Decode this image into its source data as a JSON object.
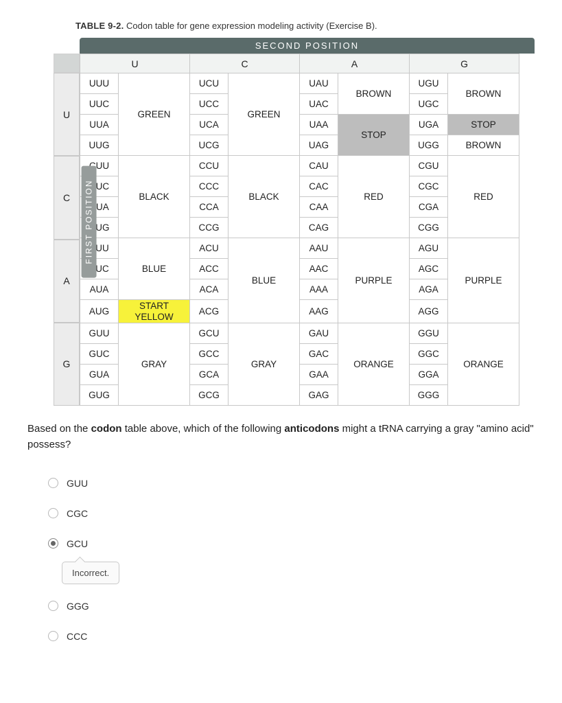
{
  "caption_label": "TABLE 9-2.",
  "caption_text": "Codon table for gene expression modeling activity (Exercise B).",
  "second_position_label": "SECOND POSITION",
  "first_position_label": "FIRST POSITION",
  "col_headers": [
    "U",
    "C",
    "A",
    "G"
  ],
  "row_headers": [
    "U",
    "C",
    "A",
    "G"
  ],
  "codon_table": {
    "U": {
      "U": {
        "codons": [
          "UUU",
          "UUC",
          "UUA",
          "UUG"
        ],
        "aa": [
          "GREEN",
          "GREEN",
          "GREEN",
          "GREEN"
        ]
      },
      "C": {
        "codons": [
          "UCU",
          "UCC",
          "UCA",
          "UCG"
        ],
        "aa": [
          "GREEN",
          "GREEN",
          "GREEN",
          "GREEN"
        ]
      },
      "A": {
        "codons": [
          "UAU",
          "UAC",
          "UAA",
          "UAG"
        ],
        "aa": [
          "BROWN",
          "BROWN",
          "STOP",
          "STOP"
        ]
      },
      "G": {
        "codons": [
          "UGU",
          "UGC",
          "UGA",
          "UGG"
        ],
        "aa": [
          "BROWN",
          "BROWN",
          "STOP",
          "BROWN"
        ]
      }
    },
    "C": {
      "U": {
        "codons": [
          "CUU",
          "CUC",
          "CUA",
          "CUG"
        ],
        "aa": [
          "BLACK",
          "BLACK",
          "BLACK",
          "BLACK"
        ]
      },
      "C": {
        "codons": [
          "CCU",
          "CCC",
          "CCA",
          "CCG"
        ],
        "aa": [
          "BLACK",
          "BLACK",
          "BLACK",
          "BLACK"
        ]
      },
      "A": {
        "codons": [
          "CAU",
          "CAC",
          "CAA",
          "CAG"
        ],
        "aa": [
          "RED",
          "RED",
          "RED",
          "RED"
        ]
      },
      "G": {
        "codons": [
          "CGU",
          "CGC",
          "CGA",
          "CGG"
        ],
        "aa": [
          "RED",
          "RED",
          "RED",
          "RED"
        ]
      }
    },
    "A": {
      "U": {
        "codons": [
          "AUU",
          "AUC",
          "AUA",
          "AUG"
        ],
        "aa": [
          "BLUE",
          "BLUE",
          "BLUE",
          "START YELLOW"
        ]
      },
      "C": {
        "codons": [
          "ACU",
          "ACC",
          "ACA",
          "ACG"
        ],
        "aa": [
          "BLUE",
          "BLUE",
          "BLUE",
          "BLUE"
        ]
      },
      "A": {
        "codons": [
          "AAU",
          "AAC",
          "AAA",
          "AAG"
        ],
        "aa": [
          "PURPLE",
          "PURPLE",
          "PURPLE",
          "PURPLE"
        ]
      },
      "G": {
        "codons": [
          "AGU",
          "AGC",
          "AGA",
          "AGG"
        ],
        "aa": [
          "PURPLE",
          "PURPLE",
          "PURPLE",
          "PURPLE"
        ]
      }
    },
    "G": {
      "U": {
        "codons": [
          "GUU",
          "GUC",
          "GUA",
          "GUG"
        ],
        "aa": [
          "GRAY",
          "GRAY",
          "GRAY",
          "GRAY"
        ]
      },
      "C": {
        "codons": [
          "GCU",
          "GCC",
          "GCA",
          "GCG"
        ],
        "aa": [
          "GRAY",
          "GRAY",
          "GRAY",
          "GRAY"
        ]
      },
      "A": {
        "codons": [
          "GAU",
          "GAC",
          "GAA",
          "GAG"
        ],
        "aa": [
          "ORANGE",
          "ORANGE",
          "ORANGE",
          "ORANGE"
        ]
      },
      "G": {
        "codons": [
          "GGU",
          "GGC",
          "GGA",
          "GGG"
        ],
        "aa": [
          "ORANGE",
          "ORANGE",
          "ORANGE",
          "ORANGE"
        ]
      }
    }
  },
  "start_label_top": "START",
  "start_label_bottom": "YELLOW",
  "question_html_parts": {
    "p1": "Based on the ",
    "b1": "codon",
    "p2": " table above, which of the following ",
    "b2": "anticodons",
    "p3": " might a tRNA carrying a gray \"amino acid\" possess?"
  },
  "choices": [
    {
      "label": "GUU",
      "selected": false
    },
    {
      "label": "CGC",
      "selected": false
    },
    {
      "label": "GCU",
      "selected": true
    },
    {
      "label": "GGG",
      "selected": false
    },
    {
      "label": "CCC",
      "selected": false
    }
  ],
  "feedback_text": "Incorrect.",
  "feedback_after_choice_index": 2,
  "colors": {
    "second_header_bg": "#5a6b6a",
    "first_label_bg": "#969c9b",
    "stop_bg": "#bdbdbd",
    "start_bg": "#f7f23a",
    "border": "#c8c8c8"
  }
}
